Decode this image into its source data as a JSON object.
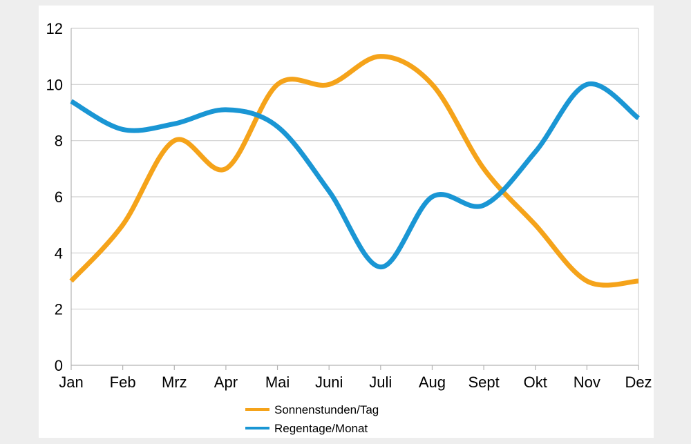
{
  "chart_data": {
    "type": "line",
    "smooth": true,
    "categories": [
      "Jan",
      "Feb",
      "Mrz",
      "Apr",
      "Mai",
      "Juni",
      "Juli",
      "Aug",
      "Sept",
      "Okt",
      "Nov",
      "Dez"
    ],
    "ylim": [
      0,
      12
    ],
    "yticks": [
      0,
      2,
      4,
      6,
      8,
      10,
      12
    ],
    "grid": true,
    "legend_position": "bottom",
    "series": [
      {
        "name": "Sonnenstunden/Tag",
        "color": "#f5a31a",
        "values": [
          3,
          5,
          8,
          7,
          10,
          10,
          11,
          10,
          7,
          5,
          3,
          3
        ]
      },
      {
        "name": "Regentage/Monat",
        "color": "#1a96d4",
        "values": [
          9.4,
          8.4,
          8.6,
          9.1,
          8.5,
          6.2,
          3.5,
          6.0,
          5.7,
          7.6,
          10.0,
          8.8
        ]
      }
    ]
  }
}
